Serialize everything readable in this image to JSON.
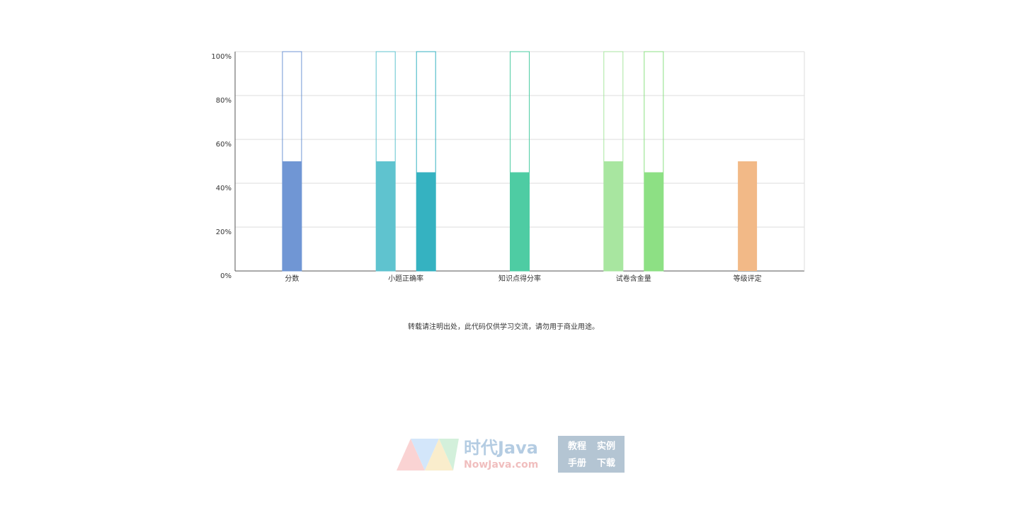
{
  "chart_data": {
    "type": "bar",
    "ylim": [
      0,
      100
    ],
    "yticks": [
      {
        "value": 0,
        "label": "0%"
      },
      {
        "value": 20,
        "label": "20%"
      },
      {
        "value": 40,
        "label": "40%"
      },
      {
        "value": 60,
        "label": "60%"
      },
      {
        "value": 80,
        "label": "80%"
      },
      {
        "value": 100,
        "label": "100%"
      }
    ],
    "grid": true,
    "groups": [
      {
        "category": "分数",
        "bars": [
          {
            "value": 50,
            "color": "#7096d4",
            "background": true
          }
        ]
      },
      {
        "category": "小题正确率",
        "bars": [
          {
            "value": 50,
            "color": "#5fc3cf",
            "background": true
          },
          {
            "value": 45,
            "color": "#35b2c1",
            "background": true
          }
        ]
      },
      {
        "category": "知识点得分率",
        "bars": [
          {
            "value": 45,
            "color": "#4ecca3",
            "background": true
          }
        ]
      },
      {
        "category": "试卷含金量",
        "bars": [
          {
            "value": 50,
            "color": "#a8e6a0",
            "background": true
          },
          {
            "value": 45,
            "color": "#8de084",
            "background": true
          }
        ]
      },
      {
        "category": "等级评定",
        "bars": [
          {
            "value": 50,
            "color": "#f2b987",
            "background": false
          }
        ]
      }
    ]
  },
  "footer": {
    "notice": "转载请注明出处，此代码仅供学习交流，请勿用于商业用途。",
    "logo": {
      "name": "时代Java",
      "site": "NowJava.com",
      "links": [
        "教程",
        "实例",
        "手册",
        "下载"
      ]
    }
  }
}
